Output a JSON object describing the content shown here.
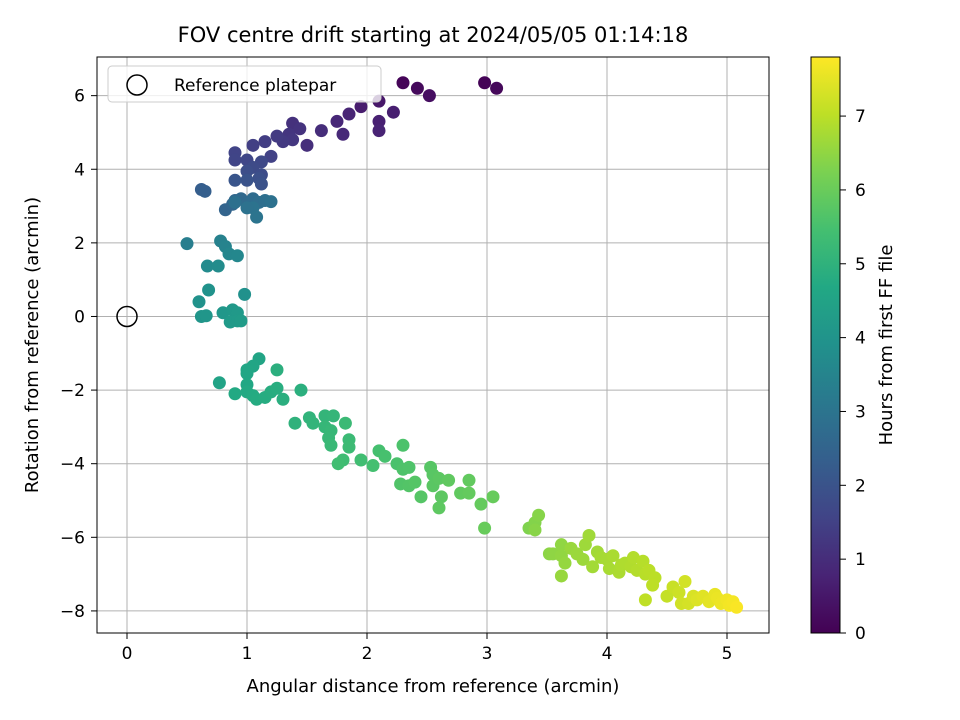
{
  "chart_data": {
    "type": "scatter",
    "title": "FOV centre drift starting at 2024/05/05 01:14:18",
    "xlabel": "Angular distance from reference (arcmin)",
    "ylabel": "Rotation from reference (arcmin)",
    "xlim": [
      -0.25,
      5.35
    ],
    "ylim": [
      -8.6,
      7.05
    ],
    "xticks": [
      "0",
      "1",
      "2",
      "3",
      "4",
      "5"
    ],
    "yticks": [
      "−8",
      "−6",
      "−4",
      "−2",
      "0",
      "2",
      "4",
      "6"
    ],
    "grid": true,
    "legend": {
      "label": "Reference platepar",
      "placement": "top-left"
    },
    "reference_point": {
      "x": 0,
      "y": 0
    },
    "colorbar": {
      "label": "Hours from first FF file",
      "min": 0,
      "max": 7.8,
      "ticks": [
        "0",
        "1",
        "2",
        "3",
        "4",
        "5",
        "6",
        "7"
      ],
      "colormap": "viridis"
    },
    "points": [
      [
        2.3,
        6.35,
        0.1
      ],
      [
        2.42,
        6.2,
        0.2
      ],
      [
        2.52,
        6.0,
        0.3
      ],
      [
        2.98,
        6.35,
        0.05
      ],
      [
        3.08,
        6.2,
        0.15
      ],
      [
        1.95,
        5.7,
        0.6
      ],
      [
        2.1,
        5.85,
        0.5
      ],
      [
        2.22,
        5.55,
        0.65
      ],
      [
        2.1,
        5.3,
        0.7
      ],
      [
        2.1,
        5.05,
        0.75
      ],
      [
        1.85,
        5.5,
        0.8
      ],
      [
        1.75,
        5.3,
        0.85
      ],
      [
        1.8,
        4.95,
        0.9
      ],
      [
        1.62,
        5.05,
        1.0
      ],
      [
        1.5,
        4.65,
        1.05
      ],
      [
        1.38,
        5.25,
        1.1
      ],
      [
        1.44,
        5.1,
        1.15
      ],
      [
        1.35,
        4.95,
        1.2
      ],
      [
        1.38,
        4.8,
        1.25
      ],
      [
        1.3,
        4.75,
        1.3
      ],
      [
        1.25,
        4.9,
        1.35
      ],
      [
        1.15,
        4.75,
        1.4
      ],
      [
        1.05,
        4.65,
        1.45
      ],
      [
        1.2,
        4.35,
        1.5
      ],
      [
        0.9,
        4.45,
        1.55
      ],
      [
        0.9,
        4.25,
        1.6
      ],
      [
        1.0,
        4.25,
        1.65
      ],
      [
        1.12,
        4.2,
        1.7
      ],
      [
        1.05,
        4.05,
        1.75
      ],
      [
        1.12,
        3.85,
        1.8
      ],
      [
        1.0,
        3.95,
        1.85
      ],
      [
        1.1,
        3.75,
        1.9
      ],
      [
        1.12,
        3.6,
        1.95
      ],
      [
        1.0,
        3.7,
        2.0
      ],
      [
        0.9,
        3.7,
        2.05
      ],
      [
        0.62,
        3.45,
        2.3
      ],
      [
        0.65,
        3.4,
        2.35
      ],
      [
        0.82,
        2.9,
        2.5
      ],
      [
        0.88,
        3.05,
        2.55
      ],
      [
        0.9,
        3.15,
        2.6
      ],
      [
        0.95,
        3.2,
        2.65
      ],
      [
        1.0,
        3.05,
        2.7
      ],
      [
        1.05,
        3.2,
        2.75
      ],
      [
        1.1,
        3.1,
        2.8
      ],
      [
        1.15,
        3.15,
        2.85
      ],
      [
        1.2,
        3.12,
        2.9
      ],
      [
        1.05,
        2.95,
        2.95
      ],
      [
        1.08,
        2.7,
        3.0
      ],
      [
        1.0,
        2.95,
        2.92
      ],
      [
        0.9,
        3.1,
        2.88
      ],
      [
        0.5,
        1.98,
        3.3
      ],
      [
        0.78,
        2.05,
        3.4
      ],
      [
        0.82,
        1.9,
        3.45
      ],
      [
        0.85,
        1.7,
        3.55
      ],
      [
        0.92,
        1.65,
        3.6
      ],
      [
        0.67,
        1.37,
        3.7
      ],
      [
        0.76,
        1.37,
        3.75
      ],
      [
        0.98,
        0.6,
        3.9
      ],
      [
        0.6,
        0.4,
        3.95
      ],
      [
        0.68,
        0.72,
        3.95
      ],
      [
        0.62,
        0.0,
        4.05
      ],
      [
        0.66,
        0.02,
        4.08
      ],
      [
        0.8,
        0.1,
        4.1
      ],
      [
        0.88,
        0.18,
        4.15
      ],
      [
        0.92,
        0.1,
        4.18
      ],
      [
        0.86,
        -0.15,
        4.2
      ],
      [
        0.92,
        -0.12,
        4.22
      ],
      [
        0.95,
        -0.12,
        4.25
      ],
      [
        0.77,
        -1.8,
        4.5
      ],
      [
        1.1,
        -1.15,
        4.55
      ],
      [
        1.05,
        -1.35,
        4.58
      ],
      [
        1.0,
        -1.45,
        4.6
      ],
      [
        1.0,
        -1.55,
        4.62
      ],
      [
        1.0,
        -1.85,
        4.65
      ],
      [
        0.9,
        -2.1,
        4.7
      ],
      [
        1.0,
        -2.05,
        4.72
      ],
      [
        1.05,
        -2.15,
        4.75
      ],
      [
        1.08,
        -2.25,
        4.78
      ],
      [
        1.15,
        -2.2,
        4.8
      ],
      [
        1.2,
        -2.05,
        4.82
      ],
      [
        1.25,
        -1.95,
        4.85
      ],
      [
        1.3,
        -2.25,
        4.88
      ],
      [
        1.25,
        -1.45,
        4.9
      ],
      [
        1.45,
        -2.0,
        4.92
      ],
      [
        1.4,
        -2.9,
        5.0
      ],
      [
        1.52,
        -2.75,
        5.05
      ],
      [
        1.55,
        -2.9,
        5.08
      ],
      [
        1.65,
        -2.7,
        5.1
      ],
      [
        1.72,
        -2.7,
        5.12
      ],
      [
        1.65,
        -3.0,
        5.15
      ],
      [
        1.7,
        -3.1,
        5.18
      ],
      [
        1.68,
        -3.3,
        5.2
      ],
      [
        1.7,
        -3.5,
        5.22
      ],
      [
        1.82,
        -2.9,
        5.25
      ],
      [
        1.85,
        -3.35,
        5.28
      ],
      [
        1.85,
        -3.55,
        5.3
      ],
      [
        1.8,
        -3.9,
        5.35
      ],
      [
        1.76,
        -4.0,
        5.38
      ],
      [
        1.95,
        -3.9,
        5.4
      ],
      [
        2.05,
        -4.05,
        5.45
      ],
      [
        2.1,
        -3.65,
        5.48
      ],
      [
        2.15,
        -3.8,
        5.5
      ],
      [
        2.25,
        -4.0,
        5.55
      ],
      [
        2.3,
        -3.5,
        5.58
      ],
      [
        2.3,
        -4.15,
        5.6
      ],
      [
        2.35,
        -4.1,
        5.62
      ],
      [
        2.28,
        -4.55,
        5.65
      ],
      [
        2.35,
        -4.6,
        5.68
      ],
      [
        2.4,
        -4.5,
        5.7
      ],
      [
        2.45,
        -4.9,
        5.72
      ],
      [
        2.53,
        -4.1,
        5.74
      ],
      [
        2.55,
        -4.3,
        5.76
      ],
      [
        2.55,
        -4.6,
        5.78
      ],
      [
        2.6,
        -4.4,
        5.8
      ],
      [
        2.62,
        -4.9,
        5.82
      ],
      [
        2.6,
        -5.2,
        5.84
      ],
      [
        2.68,
        -4.45,
        5.86
      ],
      [
        2.78,
        -4.8,
        5.88
      ],
      [
        2.85,
        -4.45,
        5.9
      ],
      [
        2.85,
        -4.8,
        5.92
      ],
      [
        2.95,
        -5.1,
        5.94
      ],
      [
        3.05,
        -4.9,
        5.96
      ],
      [
        2.98,
        -5.75,
        5.98
      ],
      [
        3.35,
        -5.75,
        6.3
      ],
      [
        3.4,
        -5.6,
        6.35
      ],
      [
        3.43,
        -5.4,
        6.38
      ],
      [
        3.4,
        -5.8,
        6.4
      ],
      [
        3.52,
        -6.45,
        6.45
      ],
      [
        3.55,
        -6.45,
        6.48
      ],
      [
        3.62,
        -6.2,
        6.5
      ],
      [
        3.62,
        -6.5,
        6.52
      ],
      [
        3.65,
        -6.7,
        6.55
      ],
      [
        3.62,
        -7.05,
        6.58
      ],
      [
        3.7,
        -6.3,
        6.6
      ],
      [
        3.75,
        -6.45,
        6.62
      ],
      [
        3.8,
        -6.6,
        6.64
      ],
      [
        3.82,
        -6.2,
        6.66
      ],
      [
        3.85,
        -5.95,
        6.68
      ],
      [
        3.92,
        -6.4,
        6.7
      ],
      [
        3.88,
        -6.8,
        6.72
      ],
      [
        3.95,
        -6.55,
        6.74
      ],
      [
        4.0,
        -6.6,
        6.76
      ],
      [
        4.02,
        -6.85,
        6.78
      ],
      [
        4.05,
        -6.5,
        6.8
      ],
      [
        4.1,
        -6.95,
        6.82
      ],
      [
        4.12,
        -6.75,
        6.84
      ],
      [
        4.15,
        -6.7,
        6.86
      ],
      [
        4.2,
        -6.8,
        6.88
      ],
      [
        4.22,
        -6.55,
        6.9
      ],
      [
        4.25,
        -6.9,
        6.92
      ],
      [
        4.3,
        -6.65,
        6.94
      ],
      [
        4.32,
        -7.0,
        6.96
      ],
      [
        4.35,
        -6.9,
        6.98
      ],
      [
        4.4,
        -7.1,
        7.0
      ],
      [
        4.38,
        -7.3,
        7.02
      ],
      [
        4.32,
        -7.7,
        7.04
      ],
      [
        4.5,
        -7.6,
        7.1
      ],
      [
        4.55,
        -7.35,
        7.15
      ],
      [
        4.6,
        -7.5,
        7.2
      ],
      [
        4.62,
        -7.8,
        7.25
      ],
      [
        4.65,
        -7.2,
        7.28
      ],
      [
        4.68,
        -7.8,
        7.3
      ],
      [
        4.72,
        -7.6,
        7.35
      ],
      [
        4.75,
        -7.7,
        7.4
      ],
      [
        4.8,
        -7.6,
        7.45
      ],
      [
        4.85,
        -7.75,
        7.5
      ],
      [
        4.9,
        -7.55,
        7.55
      ],
      [
        4.92,
        -7.65,
        7.58
      ],
      [
        4.95,
        -7.8,
        7.6
      ],
      [
        5.0,
        -7.7,
        7.65
      ],
      [
        5.02,
        -7.85,
        7.68
      ],
      [
        5.05,
        -7.75,
        7.7
      ],
      [
        5.08,
        -7.9,
        7.75
      ]
    ]
  }
}
